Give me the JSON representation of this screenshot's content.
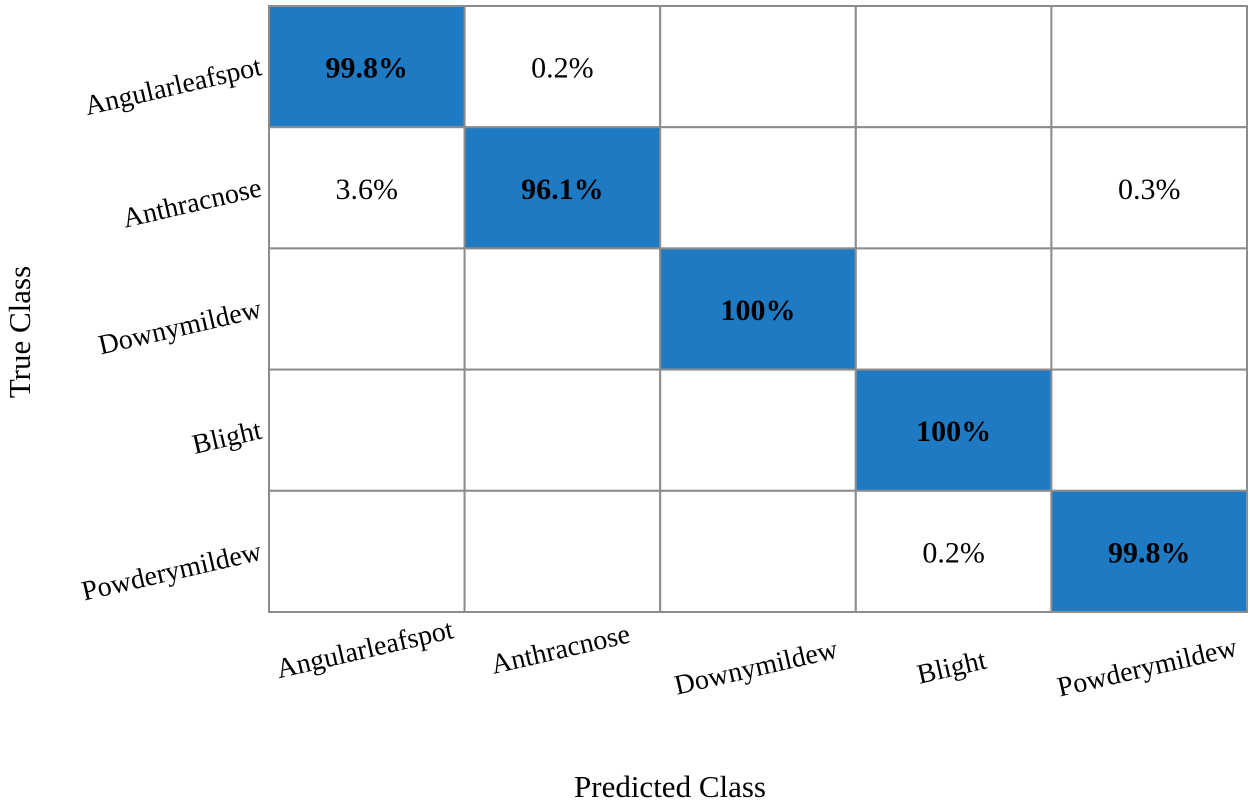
{
  "chart_data": {
    "type": "heatmap",
    "title": "",
    "xlabel": "Predicted Class",
    "ylabel": "True Class",
    "x_categories": [
      "Angularleafspot",
      "Anthracnose",
      "Downymildew",
      "Blight",
      "Powderymildew"
    ],
    "y_categories": [
      "Angularleafspot",
      "Anthracnose",
      "Downymildew",
      "Blight",
      "Powderymildew"
    ],
    "values": [
      [
        99.8,
        0.2,
        null,
        null,
        null
      ],
      [
        3.6,
        96.1,
        null,
        null,
        0.3
      ],
      [
        null,
        null,
        100,
        null,
        null
      ],
      [
        null,
        null,
        null,
        100,
        null
      ],
      [
        null,
        null,
        null,
        0.2,
        99.8
      ]
    ],
    "cell_labels": [
      [
        "99.8%",
        "0.2%",
        "",
        "",
        ""
      ],
      [
        "3.6%",
        "96.1%",
        "",
        "",
        "0.3%"
      ],
      [
        "",
        "",
        "100%",
        "",
        ""
      ],
      [
        "",
        "",
        "",
        "100%",
        ""
      ],
      [
        "",
        "",
        "",
        "0.2%",
        "99.8%"
      ]
    ],
    "value_unit": "%",
    "highlight_diagonal": true,
    "colors": {
      "diagonal_fill": "#1f7ac4",
      "off_diagonal_fill": "#ffffff",
      "grid": "#8c8c8c"
    }
  }
}
